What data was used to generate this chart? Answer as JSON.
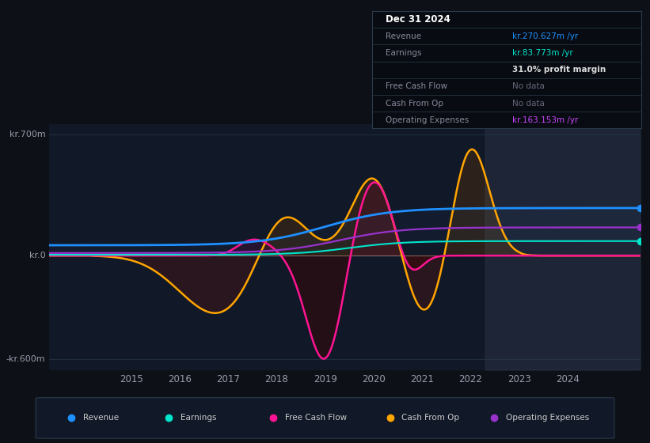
{
  "bg_color": "#0d1117",
  "plot_bg_color": "#111827",
  "ylim": [
    -660,
    760
  ],
  "xlim": [
    2013.3,
    2025.5
  ],
  "yticks_labels": [
    "kr.700m",
    "kr.0",
    "-kr.600m"
  ],
  "yticks_vals": [
    700,
    0,
    -600
  ],
  "xlabel_years": [
    2015,
    2016,
    2017,
    2018,
    2019,
    2020,
    2021,
    2022,
    2023,
    2024
  ],
  "line_colors": {
    "Revenue": "#1e90ff",
    "Earnings": "#00e5cc",
    "FreeCashFlow": "#ff1493",
    "CashFromOp": "#ffa500",
    "OperatingExpenses": "#9932cc"
  },
  "legend": [
    {
      "label": "Revenue",
      "color": "#1e90ff"
    },
    {
      "label": "Earnings",
      "color": "#00e5cc"
    },
    {
      "label": "Free Cash Flow",
      "color": "#ff1493"
    },
    {
      "label": "Cash From Op",
      "color": "#ffa500"
    },
    {
      "label": "Operating Expenses",
      "color": "#9932cc"
    }
  ],
  "table_rows": [
    {
      "label": "Dec 31 2024",
      "value": "",
      "label_color": "#ffffff",
      "value_color": "#ffffff",
      "is_header": true
    },
    {
      "label": "Revenue",
      "value": "kr.270.627m /yr",
      "label_color": "#888899",
      "value_color": "#1e90ff",
      "is_header": false
    },
    {
      "label": "Earnings",
      "value": "kr.83.773m /yr",
      "label_color": "#888899",
      "value_color": "#00e5cc",
      "is_header": false
    },
    {
      "label": "",
      "value": "31.0% profit margin",
      "label_color": "#888899",
      "value_color": "#dddddd",
      "is_header": false
    },
    {
      "label": "Free Cash Flow",
      "value": "No data",
      "label_color": "#888899",
      "value_color": "#666677",
      "is_header": false
    },
    {
      "label": "Cash From Op",
      "value": "No data",
      "label_color": "#888899",
      "value_color": "#666677",
      "is_header": false
    },
    {
      "label": "Operating Expenses",
      "value": "kr.163.153m /yr",
      "label_color": "#888899",
      "value_color": "#cc44ff",
      "is_header": false
    }
  ]
}
